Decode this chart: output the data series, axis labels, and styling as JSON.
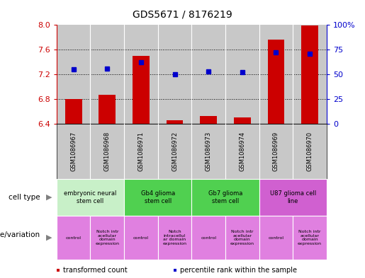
{
  "title": "GDS5671 / 8176219",
  "samples": [
    "GSM1086967",
    "GSM1086968",
    "GSM1086971",
    "GSM1086972",
    "GSM1086973",
    "GSM1086974",
    "GSM1086969",
    "GSM1086970"
  ],
  "red_values": [
    6.8,
    6.87,
    7.5,
    6.46,
    6.52,
    6.5,
    7.76,
    7.99
  ],
  "blue_values": [
    55,
    56,
    62,
    50,
    53,
    52,
    72,
    71
  ],
  "ylim_left": [
    6.4,
    8.0
  ],
  "ylim_right": [
    0,
    100
  ],
  "yticks_left": [
    6.4,
    6.8,
    7.2,
    7.6,
    8.0
  ],
  "yticks_right": [
    0,
    25,
    50,
    75,
    100
  ],
  "ytick_labels_right": [
    "0",
    "25",
    "50",
    "75",
    "100%"
  ],
  "red_color": "#cc0000",
  "blue_color": "#0000cc",
  "bar_width": 0.5,
  "cell_types": [
    {
      "label": "embryonic neural\nstem cell",
      "span": [
        0,
        2
      ],
      "color": "#c8f0c8"
    },
    {
      "label": "Gb4 glioma\nstem cell",
      "span": [
        2,
        4
      ],
      "color": "#50d050"
    },
    {
      "label": "Gb7 glioma\nstem cell",
      "span": [
        4,
        6
      ],
      "color": "#50d050"
    },
    {
      "label": "U87 glioma cell\nline",
      "span": [
        6,
        8
      ],
      "color": "#d060d0"
    }
  ],
  "genotypes": [
    {
      "label": "control",
      "span": [
        0,
        1
      ],
      "color": "#e080e0"
    },
    {
      "label": "Notch intr\nacellular\ndomain\nexpression",
      "span": [
        1,
        2
      ],
      "color": "#e080e0"
    },
    {
      "label": "control",
      "span": [
        2,
        3
      ],
      "color": "#e080e0"
    },
    {
      "label": "Notch\nintracellul\nar domain\nexpression",
      "span": [
        3,
        4
      ],
      "color": "#e080e0"
    },
    {
      "label": "control",
      "span": [
        4,
        5
      ],
      "color": "#e080e0"
    },
    {
      "label": "Notch intr\nacellular\ndomain\nexpression",
      "span": [
        5,
        6
      ],
      "color": "#e080e0"
    },
    {
      "label": "control",
      "span": [
        6,
        7
      ],
      "color": "#e080e0"
    },
    {
      "label": "Notch intr\nacellular\ndomain\nexpression",
      "span": [
        7,
        8
      ],
      "color": "#e080e0"
    }
  ],
  "legend_red": "transformed count",
  "legend_blue": "percentile rank within the sample",
  "left_label_color": "#cc0000",
  "right_label_color": "#0000cc",
  "bg_color": "#c8c8c8"
}
